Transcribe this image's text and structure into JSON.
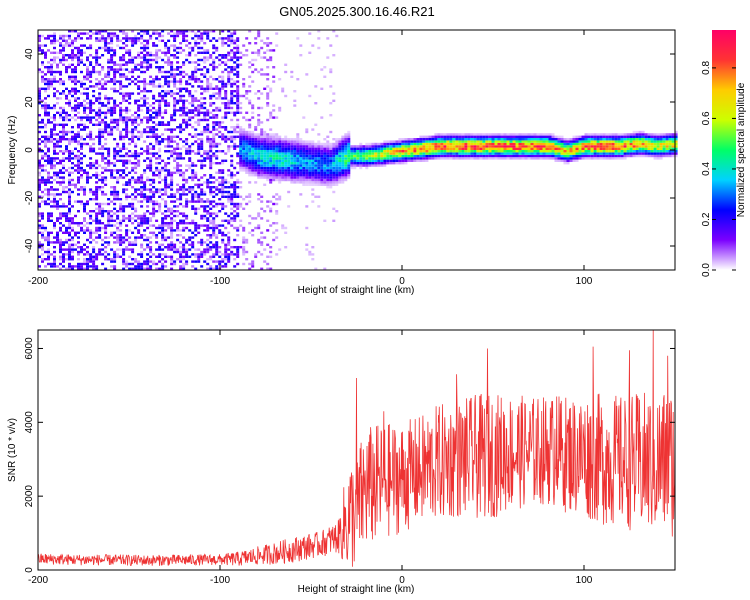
{
  "figure_title": "GN05.2025.300.16.46.R21",
  "chart_data": [
    {
      "type": "heatmap",
      "title": "GN05.2025.300.16.46.R21",
      "xlabel": "Height of straight line (km)",
      "ylabel": "Frequency (Hz)",
      "xlim": [
        -200,
        150
      ],
      "ylim": [
        -50,
        50
      ],
      "xticks": [
        -200,
        -100,
        0,
        100
      ],
      "xtick_labels": [
        "-200",
        "-100",
        "0",
        "100"
      ],
      "yticks": [
        -40,
        -20,
        0,
        20,
        40
      ],
      "ytick_labels": [
        "-40",
        "-20",
        "0",
        "20",
        "40"
      ],
      "grid": false,
      "ridge": {
        "description": "dominant frequency ridge",
        "height_km": [
          -90,
          -80,
          -70,
          -60,
          -50,
          -40,
          -35,
          -30,
          -20,
          -10,
          0,
          10,
          20,
          40,
          60,
          80,
          90,
          100,
          110,
          120,
          130,
          140,
          150
        ],
        "frequency_hz": [
          0,
          -3,
          -4,
          -5,
          -6,
          -7,
          -5,
          -3,
          -3,
          -2,
          -1,
          0,
          1,
          1,
          1,
          1,
          -1,
          1,
          1,
          1,
          2,
          1,
          2
        ],
        "amplitude": [
          0.35,
          0.4,
          0.45,
          0.4,
          0.35,
          0.35,
          0.45,
          0.55,
          0.6,
          0.7,
          0.8,
          0.85,
          0.9,
          0.9,
          0.88,
          0.9,
          0.75,
          0.85,
          0.9,
          0.85,
          0.8,
          0.7,
          0.75
        ]
      },
      "noise_regions": [
        {
          "height_km": [
            -200,
            -90
          ],
          "level": 0.15
        },
        {
          "height_km": [
            -90,
            -70
          ],
          "level": 0.06
        },
        {
          "height_km": [
            -70,
            -35
          ],
          "level": 0.02
        }
      ],
      "colorbar": {
        "label": "Normalized spectral amplitude",
        "range": [
          0,
          0.95
        ],
        "ticks": [
          0.0,
          0.2,
          0.4,
          0.6,
          0.8
        ],
        "tick_labels": [
          "0.0",
          "0.2",
          "0.4",
          "0.6",
          "0.8"
        ],
        "colormap": [
          "#ffffff",
          "#7b00ff",
          "#0000ff",
          "#00d2ff",
          "#00ff66",
          "#ccff00",
          "#ffcc00",
          "#ff3333",
          "#ff0066"
        ]
      }
    },
    {
      "type": "line",
      "xlabel": "Height of straight line (km)",
      "ylabel": "SNR (10 * v/v)",
      "xlim": [
        -200,
        150
      ],
      "ylim": [
        0,
        6500
      ],
      "xticks": [
        -200,
        -100,
        0,
        100
      ],
      "xtick_labels": [
        "-200",
        "-100",
        "0",
        "100"
      ],
      "yticks": [
        0,
        2000,
        4000,
        6000
      ],
      "ytick_labels": [
        "0",
        "2000",
        "4000",
        "6000"
      ],
      "grid": false,
      "color": "#ee3333",
      "series": [
        {
          "name": "SNR",
          "x": [
            -200,
            -180,
            -160,
            -140,
            -120,
            -100,
            -90,
            -80,
            -70,
            -60,
            -50,
            -45,
            -40,
            -35,
            -30,
            -25,
            -20,
            -10,
            0,
            10,
            20,
            30,
            40,
            50,
            60,
            70,
            80,
            90,
            100,
            110,
            120,
            130,
            140,
            150
          ],
          "mean": [
            300,
            280,
            270,
            260,
            270,
            280,
            300,
            380,
            450,
            550,
            650,
            700,
            800,
            900,
            1400,
            1600,
            2200,
            2400,
            2500,
            2700,
            2900,
            3000,
            3050,
            3100,
            3200,
            3200,
            3250,
            3150,
            3100,
            3000,
            2950,
            2900,
            2900,
            2950
          ],
          "spread": [
            150,
            150,
            150,
            150,
            150,
            150,
            200,
            250,
            300,
            350,
            350,
            350,
            400,
            450,
            1500,
            1600,
            1700,
            1600,
            1500,
            1500,
            1600,
            1600,
            1700,
            1700,
            1600,
            1500,
            1500,
            1600,
            1700,
            1800,
            1800,
            1900,
            2000,
            2100
          ]
        }
      ],
      "peaks": [
        {
          "x": -25,
          "y": 5200
        },
        {
          "x": -10,
          "y": 4300
        },
        {
          "x": 30,
          "y": 5300
        },
        {
          "x": 47,
          "y": 6000
        },
        {
          "x": 85,
          "y": 4700
        },
        {
          "x": 105,
          "y": 6050
        },
        {
          "x": 125,
          "y": 5950
        },
        {
          "x": 138,
          "y": 6500
        },
        {
          "x": 146,
          "y": 5800
        }
      ]
    }
  ]
}
